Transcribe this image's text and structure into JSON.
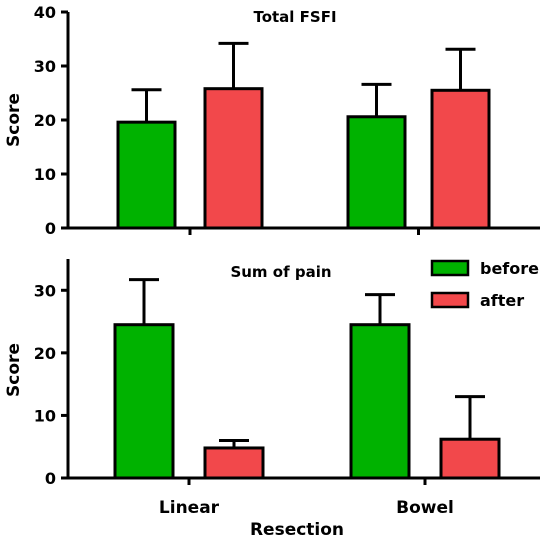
{
  "chart_data": [
    {
      "type": "bar",
      "title": "Total FSFI",
      "ylabel": "Score",
      "xlabel": "",
      "ylim": [
        0,
        40
      ],
      "yticks": [
        "0",
        "10",
        "20",
        "30",
        "40"
      ],
      "categories": [
        "Linear",
        "Bowel"
      ],
      "show_category_labels": false,
      "grid": false,
      "legend": "none",
      "series": [
        {
          "name": "before",
          "color": "#00b200",
          "values": [
            19.6,
            20.6
          ],
          "error": [
            6.0,
            6.0
          ]
        },
        {
          "name": "after",
          "color": "#f2484b",
          "values": [
            25.8,
            25.5
          ],
          "error": [
            8.4,
            7.6
          ]
        }
      ]
    },
    {
      "type": "bar",
      "title": "Sum of pain",
      "ylabel": "Score",
      "xlabel": "Resection",
      "ylim": [
        0,
        35
      ],
      "yticks": [
        "0",
        "10",
        "20",
        "30"
      ],
      "categories": [
        "Linear",
        "Bowel"
      ],
      "show_category_labels": true,
      "grid": false,
      "legend": "top-right",
      "series": [
        {
          "name": "before",
          "color": "#00b200",
          "values": [
            24.5,
            24.5
          ],
          "error": [
            7.2,
            4.8
          ]
        },
        {
          "name": "after",
          "color": "#f2484b",
          "values": [
            4.8,
            6.2
          ],
          "error": [
            1.2,
            6.8
          ]
        }
      ]
    }
  ]
}
